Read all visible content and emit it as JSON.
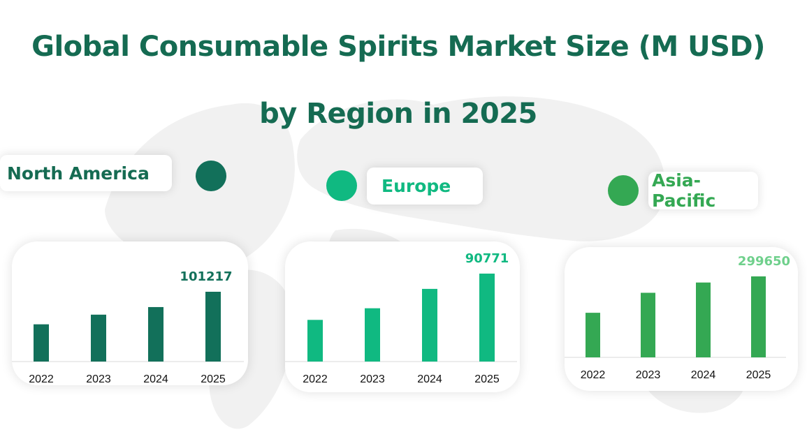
{
  "title_line_1": "Global Consumable Spirits Market Size (M USD)",
  "title_line_2": "by Region in 2025",
  "colors": {
    "title": "#156b52",
    "north_america": "#12705a",
    "europe": "#10b981",
    "asia_pacific": "#34a853",
    "asia_pacific_label": "#6fd08c"
  },
  "chart_data": [
    {
      "type": "bar",
      "title": "North America",
      "categories": [
        "2022",
        "2023",
        "2024",
        "2025"
      ],
      "values": [
        54000,
        68000,
        79000,
        101217
      ],
      "value_label": "101217",
      "grid": false
    },
    {
      "type": "bar",
      "title": "Europe",
      "categories": [
        "2022",
        "2023",
        "2024",
        "2025"
      ],
      "values": [
        43000,
        55000,
        75000,
        90771
      ],
      "value_label": "90771",
      "grid": false
    },
    {
      "type": "bar",
      "title": "Asia-Pacific",
      "categories": [
        "2022",
        "2023",
        "2024",
        "2025"
      ],
      "values": [
        165000,
        239000,
        277000,
        299650
      ],
      "value_label": "299650",
      "grid": false
    }
  ]
}
